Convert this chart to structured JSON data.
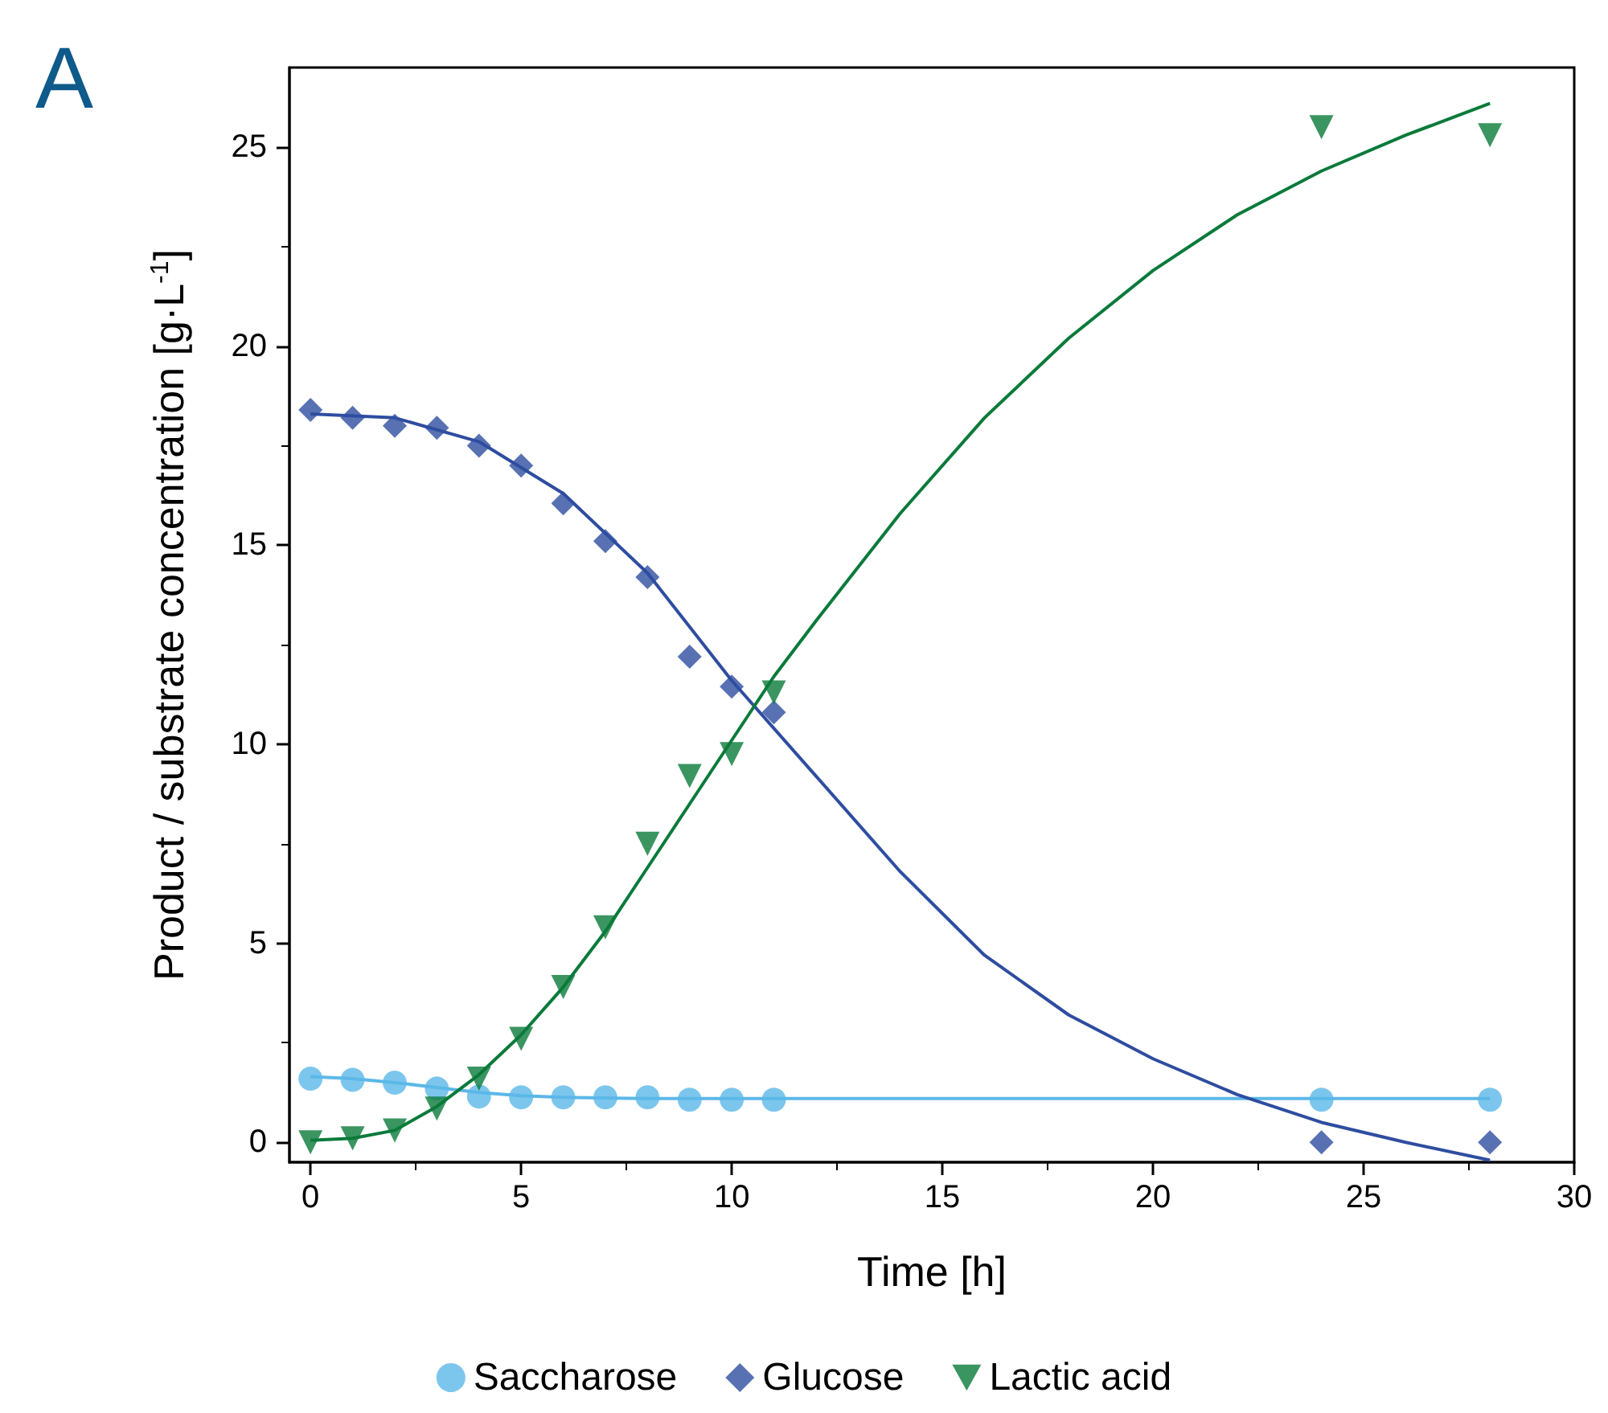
{
  "chart_data": {
    "type": "scatter",
    "xlabel": "Time [h]",
    "ylabel": "Product / substrate concentration [g·L$^{-1}$]",
    "annotations": [
      "A"
    ],
    "xlim": [
      -0.5,
      30
    ],
    "ylim": [
      -0.5,
      27
    ],
    "xticks": [
      0,
      5,
      10,
      15,
      20,
      25,
      30
    ],
    "yticks": [
      0,
      5,
      10,
      15,
      20,
      25
    ],
    "grid": false,
    "legend": "bottom",
    "series": [
      {
        "name": "Saccharose",
        "color": "#5bb8e8",
        "marker": "circle",
        "x": [
          0,
          1,
          2,
          3,
          4,
          5,
          6,
          7,
          8,
          9,
          10,
          11,
          24,
          28
        ],
        "values": [
          1.6,
          1.57,
          1.5,
          1.35,
          1.15,
          1.13,
          1.13,
          1.13,
          1.13,
          1.07,
          1.07,
          1.07,
          1.07,
          1.07
        ]
      },
      {
        "name": "Glucose",
        "color": "#2e4da0",
        "marker": "diamond",
        "x": [
          0,
          1,
          2,
          3,
          4,
          5,
          6,
          7,
          8,
          9,
          10,
          11,
          24,
          28
        ],
        "values": [
          18.4,
          18.2,
          18.0,
          17.95,
          17.5,
          17.0,
          16.05,
          15.1,
          14.2,
          12.2,
          11.45,
          10.8,
          0,
          0
        ]
      },
      {
        "name": "Lactic acid",
        "color": "#0a7a3a",
        "marker": "triangle",
        "x": [
          0,
          1,
          2,
          3,
          4,
          5,
          6,
          7,
          8,
          9,
          10,
          11,
          24,
          28
        ],
        "values": [
          0,
          0.1,
          0.3,
          0.85,
          1.6,
          2.6,
          3.9,
          5.4,
          7.5,
          9.2,
          9.75,
          11.3,
          25.5,
          25.3
        ]
      },
      {
        "type": "line",
        "color": "#5bb8e8",
        "marker": "none",
        "x": [
          0,
          1,
          2,
          3,
          4,
          5,
          6,
          8,
          10,
          15,
          20,
          28
        ],
        "values": [
          1.65,
          1.6,
          1.5,
          1.38,
          1.25,
          1.17,
          1.13,
          1.1,
          1.1,
          1.1,
          1.1,
          1.1
        ]
      },
      {
        "type": "line",
        "color": "#2e4da0",
        "marker": "none",
        "x": [
          0,
          2,
          4,
          6,
          8,
          10,
          12,
          14,
          16,
          18,
          20,
          22,
          24,
          26,
          28
        ],
        "values": [
          18.3,
          18.2,
          17.6,
          16.3,
          14.3,
          11.6,
          9.2,
          6.8,
          4.7,
          3.2,
          2.1,
          1.2,
          0.5,
          0,
          -0.45
        ]
      },
      {
        "type": "line",
        "color": "#0a7a3a",
        "marker": "none",
        "x": [
          0,
          1,
          2,
          3,
          4,
          5,
          6,
          7,
          8,
          9,
          10,
          11,
          12,
          14,
          16,
          18,
          20,
          22,
          24,
          26,
          28
        ],
        "values": [
          0.05,
          0.1,
          0.3,
          0.9,
          1.7,
          2.7,
          3.9,
          5.3,
          6.9,
          8.5,
          10.1,
          11.7,
          13.1,
          15.8,
          18.2,
          20.2,
          21.9,
          23.3,
          24.4,
          25.3,
          26.1
        ]
      }
    ]
  }
}
